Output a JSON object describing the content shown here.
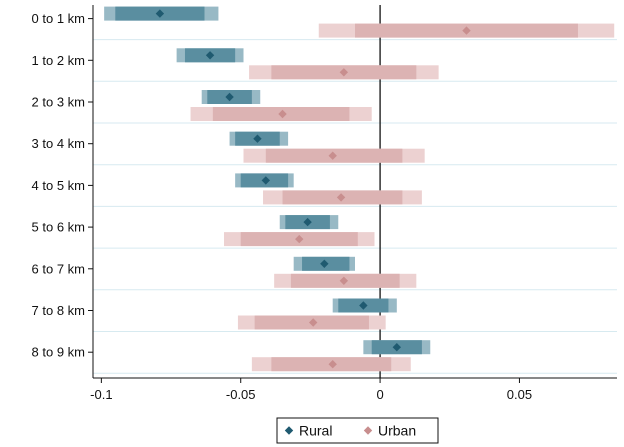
{
  "chart_data": {
    "type": "coefficient-interval",
    "orientation": "horizontal",
    "categories": [
      "0 to 1 km",
      "1 to 2 km",
      "2 to 3 km",
      "3 to 4 km",
      "4 to 5 km",
      "5 to 6 km",
      "6 to 7 km",
      "7 to 8 km",
      "8 to 9 km"
    ],
    "x_ticks": [
      -0.1,
      -0.05,
      0,
      0.05
    ],
    "x_tick_labels": [
      "-0.1",
      "-0.05",
      "0",
      "0.05"
    ],
    "xlim": [
      -0.103,
      0.085
    ],
    "reference_line": 0,
    "grid": "horizontal",
    "legend": {
      "placement": "bottom-center",
      "entries": [
        "Rural",
        "Urban"
      ]
    },
    "series": [
      {
        "name": "Rural",
        "point": [
          -0.079,
          -0.061,
          -0.054,
          -0.044,
          -0.041,
          -0.026,
          -0.02,
          -0.006,
          0.006
        ],
        "ci_inner": [
          [
            -0.095,
            -0.063
          ],
          [
            -0.07,
            -0.052
          ],
          [
            -0.062,
            -0.046
          ],
          [
            -0.052,
            -0.036
          ],
          [
            -0.05,
            -0.033
          ],
          [
            -0.034,
            -0.018
          ],
          [
            -0.028,
            -0.011
          ],
          [
            -0.015,
            0.003
          ],
          [
            -0.003,
            0.015
          ]
        ],
        "ci_outer": [
          [
            -0.099,
            -0.058
          ],
          [
            -0.073,
            -0.049
          ],
          [
            -0.064,
            -0.043
          ],
          [
            -0.054,
            -0.033
          ],
          [
            -0.052,
            -0.031
          ],
          [
            -0.036,
            -0.015
          ],
          [
            -0.031,
            -0.009
          ],
          [
            -0.017,
            0.006
          ],
          [
            -0.006,
            0.018
          ]
        ]
      },
      {
        "name": "Urban",
        "point": [
          0.031,
          -0.013,
          -0.035,
          -0.017,
          -0.014,
          -0.029,
          -0.013,
          -0.024,
          -0.017
        ],
        "ci_inner": [
          [
            -0.009,
            0.071
          ],
          [
            -0.039,
            0.013
          ],
          [
            -0.06,
            -0.011
          ],
          [
            -0.041,
            0.008
          ],
          [
            -0.035,
            0.008
          ],
          [
            -0.05,
            -0.008
          ],
          [
            -0.032,
            0.007
          ],
          [
            -0.045,
            -0.004
          ],
          [
            -0.039,
            0.004
          ]
        ],
        "ci_outer": [
          [
            -0.022,
            0.084
          ],
          [
            -0.047,
            0.021
          ],
          [
            -0.068,
            -0.003
          ],
          [
            -0.049,
            0.016
          ],
          [
            -0.042,
            0.015
          ],
          [
            -0.056,
            -0.002
          ],
          [
            -0.038,
            0.013
          ],
          [
            -0.051,
            0.002
          ],
          [
            -0.046,
            0.011
          ]
        ]
      }
    ]
  },
  "colors": {
    "rural_point": "#1f5a70",
    "rural_inner": "#5a8ea0",
    "rural_outer": "#98b9c5",
    "urban_point": "#c88e8e",
    "urban_inner": "#dcb3b3",
    "urban_outer": "#ecd1d1",
    "grid": "#d7eaf0",
    "axis": "#111111"
  }
}
